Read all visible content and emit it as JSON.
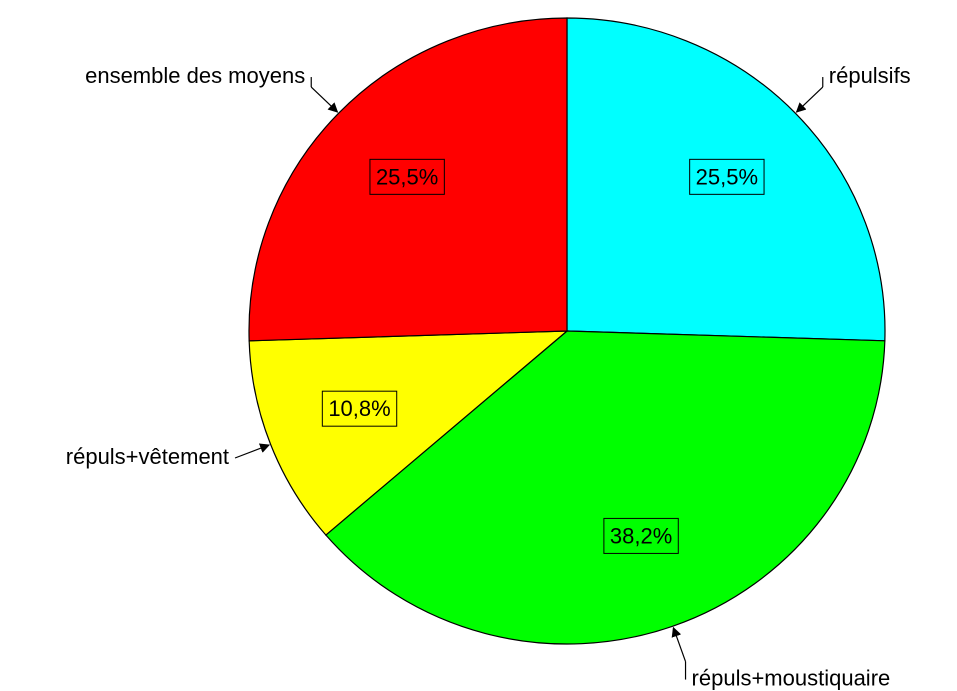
{
  "chart_data": {
    "type": "pie",
    "categories": [
      "répulsifs",
      "répuls+moustiquaire",
      "répuls+vêtement",
      "ensemble des moyens"
    ],
    "values": [
      25.5,
      38.2,
      10.8,
      25.5
    ],
    "value_labels": [
      "25,5%",
      "38,2%",
      "10,8%",
      "25,5%"
    ],
    "colors": [
      "#00ffff",
      "#00ff00",
      "#ffff00",
      "#ff0000"
    ]
  }
}
